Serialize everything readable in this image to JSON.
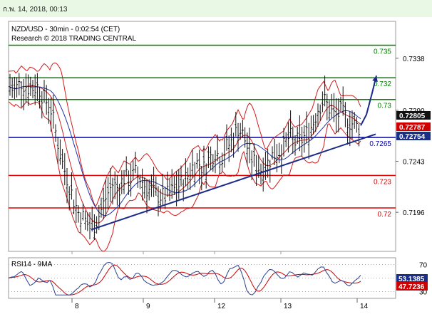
{
  "header": {
    "datetime": "ก.พ. 14, 2018, 00:13"
  },
  "chart_data": [
    {
      "type": "candlestick",
      "instrument": "NZD/USD",
      "title_line1": "NZD/USD - 30min - 0:02:54 (CET)",
      "title_line2": "Research © 2018 TRADING CENTRAL",
      "ylim": [
        0.716,
        0.7372
      ],
      "y_ticks": [
        "0.7338",
        "0.7290",
        "0.7243",
        "0.7196"
      ],
      "x_ticks": [
        "8",
        "9",
        "12",
        "13",
        "14"
      ],
      "grid": false,
      "series": [
        {
          "name": "price",
          "points": [
            [
              0,
              0.7312
            ],
            [
              8,
              0.7308
            ],
            [
              18,
              0.7316
            ],
            [
              30,
              0.731
            ],
            [
              42,
              0.7312
            ],
            [
              50,
              0.73
            ],
            [
              58,
              0.7296
            ],
            [
              66,
              0.727
            ],
            [
              74,
              0.7245
            ],
            [
              82,
              0.7228
            ],
            [
              90,
              0.721
            ],
            [
              98,
              0.7196
            ],
            [
              106,
              0.719
            ],
            [
              114,
              0.7182
            ],
            [
              122,
              0.7186
            ],
            [
              130,
              0.7198
            ],
            [
              138,
              0.7212
            ],
            [
              146,
              0.7222
            ],
            [
              154,
              0.7218
            ],
            [
              162,
              0.7228
            ],
            [
              170,
              0.7226
            ],
            [
              178,
              0.7232
            ],
            [
              186,
              0.7226
            ],
            [
              194,
              0.7218
            ],
            [
              202,
              0.7214
            ],
            [
              210,
              0.7212
            ],
            [
              218,
              0.721
            ],
            [
              226,
              0.7213
            ],
            [
              234,
              0.7218
            ],
            [
              242,
              0.7222
            ],
            [
              250,
              0.7228
            ],
            [
              258,
              0.7238
            ],
            [
              266,
              0.7242
            ],
            [
              274,
              0.7236
            ],
            [
              282,
              0.7246
            ],
            [
              290,
              0.7252
            ],
            [
              298,
              0.7246
            ],
            [
              306,
              0.7256
            ],
            [
              314,
              0.7262
            ],
            [
              322,
              0.7274
            ],
            [
              330,
              0.7266
            ],
            [
              338,
              0.725
            ],
            [
              346,
              0.724
            ],
            [
              354,
              0.7236
            ],
            [
              362,
              0.724
            ],
            [
              370,
              0.7248
            ],
            [
              378,
              0.7252
            ],
            [
              386,
              0.7256
            ],
            [
              394,
              0.7266
            ],
            [
              402,
              0.726
            ],
            [
              410,
              0.7262
            ],
            [
              418,
              0.7268
            ],
            [
              426,
              0.7276
            ],
            [
              434,
              0.7292
            ],
            [
              442,
              0.73
            ],
            [
              450,
              0.7292
            ],
            [
              458,
              0.7284
            ],
            [
              466,
              0.7288
            ],
            [
              474,
              0.7282
            ],
            [
              482,
              0.7278
            ],
            [
              490,
              0.7274
            ],
            [
              494,
              0.7276
            ]
          ]
        },
        {
          "name": "forecast",
          "points": [
            [
              494,
              0.7276
            ],
            [
              502,
              0.7286
            ],
            [
              510,
              0.7306
            ],
            [
              516,
              0.7322
            ]
          ]
        }
      ],
      "levels": [
        {
          "value": 0.735,
          "label": "0.735",
          "color": "#008000"
        },
        {
          "value": 0.732,
          "label": "0.732",
          "color": "#008000"
        },
        {
          "value": 0.73,
          "label": "0.73",
          "color": "#008000"
        },
        {
          "value": 0.7265,
          "label": "0.7265",
          "color": "#0000aa"
        },
        {
          "value": 0.723,
          "label": "0.723",
          "color": "#e00000"
        },
        {
          "value": 0.72,
          "label": "0.72",
          "color": "#e00000"
        }
      ],
      "trendline": [
        [
          116,
          0.718
        ],
        [
          515,
          0.7268
        ]
      ],
      "price_tags": [
        {
          "label": "0.72805",
          "bg": "#111111",
          "fg": "#ffffff"
        },
        {
          "label": "0.72787",
          "bg": "#cc0000",
          "fg": "#ffffff"
        },
        {
          "label": "0.72754",
          "bg": "#1a2f8a",
          "fg": "#ffffff"
        }
      ]
    },
    {
      "type": "line",
      "title": "RSI14 - 9MA",
      "ylim": [
        20,
        80
      ],
      "y_ticks": [
        "70",
        "50",
        "30"
      ],
      "series": [
        {
          "name": "RSI14",
          "color": "#2a3f8f"
        },
        {
          "name": "9MA",
          "color": "#cc0000"
        }
      ],
      "price_tags": [
        {
          "label": "53.1385",
          "bg": "#1a2f8a",
          "fg": "#ffffff"
        },
        {
          "label": "47.7236",
          "bg": "#cc0000",
          "fg": "#ffffff"
        }
      ]
    }
  ]
}
